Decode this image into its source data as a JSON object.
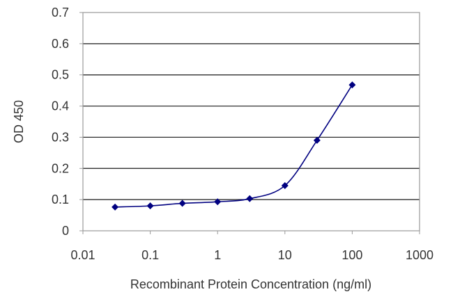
{
  "chart_data": {
    "type": "line",
    "title": "",
    "xlabel": "Recombinant Protein Concentration (ng/ml)",
    "ylabel": "OD 450",
    "x_scale": "log",
    "xlim": [
      0.01,
      1000
    ],
    "ylim": [
      0,
      0.7
    ],
    "x_ticks": [
      "0.01",
      "0.1",
      "1",
      "10",
      "100",
      "1000"
    ],
    "x_tick_values": [
      0.01,
      0.1,
      1,
      10,
      100,
      1000
    ],
    "y_ticks": [
      "0",
      "0.1",
      "0.2",
      "0.3",
      "0.4",
      "0.5",
      "0.6",
      "0.7"
    ],
    "y_tick_values": [
      0,
      0.1,
      0.2,
      0.3,
      0.4,
      0.5,
      0.6,
      0.7
    ],
    "grid": "horizontal",
    "series": [
      {
        "x": [
          0.03,
          0.1,
          0.3,
          1,
          3,
          10,
          30,
          100
        ],
        "y": [
          0.076,
          0.08,
          0.088,
          0.093,
          0.103,
          0.145,
          0.29,
          0.468
        ],
        "color": "#000080"
      }
    ]
  }
}
